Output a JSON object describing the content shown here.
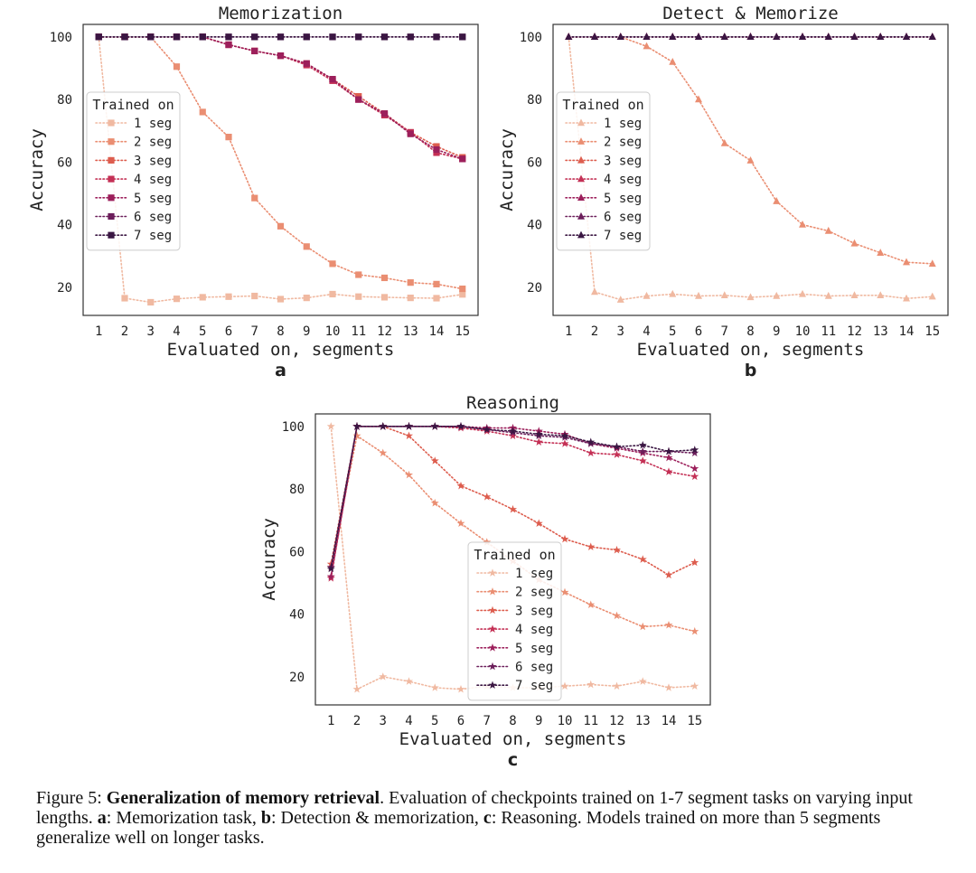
{
  "chart_data": [
    {
      "type": "line",
      "title": "Memorization",
      "panel_label": "a",
      "xlabel": "Evaluated on, segments",
      "ylabel": "Accuracy",
      "x": [
        1,
        2,
        3,
        4,
        5,
        6,
        7,
        8,
        9,
        10,
        11,
        12,
        13,
        14,
        15
      ],
      "xlim": [
        0.4,
        15.6
      ],
      "ylim": [
        11,
        104
      ],
      "yticks": [
        20,
        40,
        60,
        80,
        100
      ],
      "marker": "square",
      "legend_title": "Trained on",
      "legend_position": "center-left",
      "series": [
        {
          "name": "1 seg",
          "color": "#f0b9a1",
          "values": [
            100,
            16.5,
            15.2,
            16.3,
            16.8,
            17.0,
            17.2,
            16.2,
            16.6,
            17.8,
            17.0,
            16.8,
            16.6,
            16.5,
            17.7
          ]
        },
        {
          "name": "2 seg",
          "color": "#ea8e72",
          "values": [
            100,
            100,
            100,
            90.5,
            76,
            68,
            48.5,
            39.5,
            33,
            27.5,
            24,
            23,
            21.5,
            21,
            19.5
          ]
        },
        {
          "name": "3 seg",
          "color": "#dd5d4e",
          "values": [
            100,
            100,
            100,
            100,
            100,
            97.5,
            95.5,
            94,
            91.5,
            86.5,
            81,
            75.5,
            69.5,
            65,
            61.5
          ]
        },
        {
          "name": "4 seg",
          "color": "#c43055",
          "values": [
            100,
            100,
            100,
            100,
            100,
            97.5,
            95.5,
            94,
            91,
            86,
            80,
            75,
            69.5,
            63,
            61
          ]
        },
        {
          "name": "5 seg",
          "color": "#9c1f5b",
          "values": [
            100,
            100,
            100,
            100,
            100,
            97.5,
            95.5,
            94,
            91.5,
            86.5,
            80,
            75.5,
            69,
            64,
            61
          ]
        },
        {
          "name": "6 seg",
          "color": "#6b1d5a",
          "values": [
            100,
            100,
            100,
            100,
            100,
            100,
            100,
            100,
            100,
            100,
            100,
            100,
            100,
            100,
            100
          ]
        },
        {
          "name": "7 seg",
          "color": "#3a1642",
          "values": [
            100,
            100,
            100,
            100,
            100,
            100,
            100,
            100,
            100,
            100,
            100,
            100,
            100,
            100,
            100
          ]
        }
      ]
    },
    {
      "type": "line",
      "title": "Detect & Memorize",
      "panel_label": "b",
      "xlabel": "Evaluated on, segments",
      "ylabel": "Accuracy",
      "x": [
        1,
        2,
        3,
        4,
        5,
        6,
        7,
        8,
        9,
        10,
        11,
        12,
        13,
        14,
        15
      ],
      "xlim": [
        0.4,
        15.6
      ],
      "ylim": [
        11,
        104
      ],
      "yticks": [
        20,
        40,
        60,
        80,
        100
      ],
      "marker": "triangle",
      "legend_title": "Trained on",
      "legend_position": "center-left",
      "series": [
        {
          "name": "1 seg",
          "color": "#f0b9a1",
          "values": [
            100,
            18.5,
            16,
            17.2,
            17.8,
            17.2,
            17.4,
            16.8,
            17.2,
            17.8,
            17.2,
            17.4,
            17.4,
            16.4,
            17
          ]
        },
        {
          "name": "2 seg",
          "color": "#ea8e72",
          "values": [
            100,
            100,
            100,
            97,
            92,
            80,
            66,
            60.5,
            47.5,
            40,
            38,
            34,
            31,
            28,
            27.5
          ]
        },
        {
          "name": "3 seg",
          "color": "#dd5d4e",
          "values": [
            100,
            100,
            100,
            100,
            100,
            100,
            100,
            100,
            100,
            100,
            100,
            100,
            100,
            100,
            100
          ]
        },
        {
          "name": "4 seg",
          "color": "#c43055",
          "values": [
            100,
            100,
            100,
            100,
            100,
            100,
            100,
            100,
            100,
            100,
            100,
            100,
            100,
            100,
            100
          ]
        },
        {
          "name": "5 seg",
          "color": "#9c1f5b",
          "values": [
            100,
            100,
            100,
            100,
            100,
            100,
            100,
            100,
            100,
            100,
            100,
            100,
            100,
            100,
            100
          ]
        },
        {
          "name": "6 seg",
          "color": "#6b1d5a",
          "values": [
            100,
            100,
            100,
            100,
            100,
            100,
            100,
            100,
            100,
            100,
            100,
            100,
            100,
            100,
            100
          ]
        },
        {
          "name": "7 seg",
          "color": "#3a1642",
          "values": [
            100,
            100,
            100,
            100,
            100,
            100,
            100,
            100,
            100,
            100,
            100,
            100,
            100,
            100,
            100
          ]
        }
      ]
    },
    {
      "type": "line",
      "title": "Reasoning",
      "panel_label": "c",
      "xlabel": "Evaluated on, segments",
      "ylabel": "Accuracy",
      "x": [
        1,
        2,
        3,
        4,
        5,
        6,
        7,
        8,
        9,
        10,
        11,
        12,
        13,
        14,
        15
      ],
      "xlim": [
        0.4,
        15.6
      ],
      "ylim": [
        11,
        104
      ],
      "yticks": [
        20,
        40,
        60,
        80,
        100
      ],
      "marker": "star",
      "legend_title": "Trained on",
      "legend_position": "lower-center",
      "series": [
        {
          "name": "1 seg",
          "color": "#f0b9a1",
          "values": [
            100,
            16,
            20,
            18.5,
            16.5,
            16,
            17,
            16.5,
            16.5,
            17,
            17.5,
            17,
            18.5,
            16.5,
            17
          ]
        },
        {
          "name": "2 seg",
          "color": "#ea8e72",
          "values": [
            55,
            97,
            91.5,
            84.5,
            75.5,
            69,
            63,
            57,
            51,
            47,
            43,
            39.5,
            36,
            36.5,
            34.5
          ]
        },
        {
          "name": "3 seg",
          "color": "#dd5d4e",
          "values": [
            56,
            100,
            100,
            97,
            89,
            81,
            77.5,
            73.5,
            69,
            64,
            61.5,
            60.5,
            57.5,
            52.5,
            56.5
          ]
        },
        {
          "name": "4 seg",
          "color": "#c43055",
          "values": [
            51.5,
            100,
            100,
            100,
            100,
            99.5,
            98.5,
            97,
            95,
            94.5,
            91.5,
            91,
            89,
            85.5,
            84
          ]
        },
        {
          "name": "5 seg",
          "color": "#9c1f5b",
          "values": [
            52,
            100,
            100,
            100,
            100,
            100,
            99.5,
            99.5,
            98.5,
            97.5,
            94.5,
            93,
            91.5,
            90,
            86.5
          ]
        },
        {
          "name": "6 seg",
          "color": "#6b1d5a",
          "values": [
            55,
            100,
            100,
            100,
            100,
            100,
            99,
            98,
            97,
            96.5,
            94.5,
            93.5,
            92,
            92,
            91.5
          ]
        },
        {
          "name": "7 seg",
          "color": "#3a1642",
          "values": [
            54.5,
            100,
            100,
            100,
            100,
            100,
            99,
            98.5,
            97.5,
            97,
            95,
            93.5,
            94,
            92,
            92.5
          ]
        }
      ]
    }
  ],
  "caption": {
    "prefix": "Figure 5: ",
    "bold_title": "Generalization of memory retrieval",
    "part1": ". Evaluation of checkpoints trained on 1-7 segment tasks on varying input lengths. ",
    "a_label": "a",
    "a_text": ": Memorization task, ",
    "b_label": "b",
    "b_text": ": Detection & memorization, ",
    "c_label": "c",
    "c_text": ": Reasoning. Models trained on more than 5 segments generalize well on longer tasks."
  }
}
